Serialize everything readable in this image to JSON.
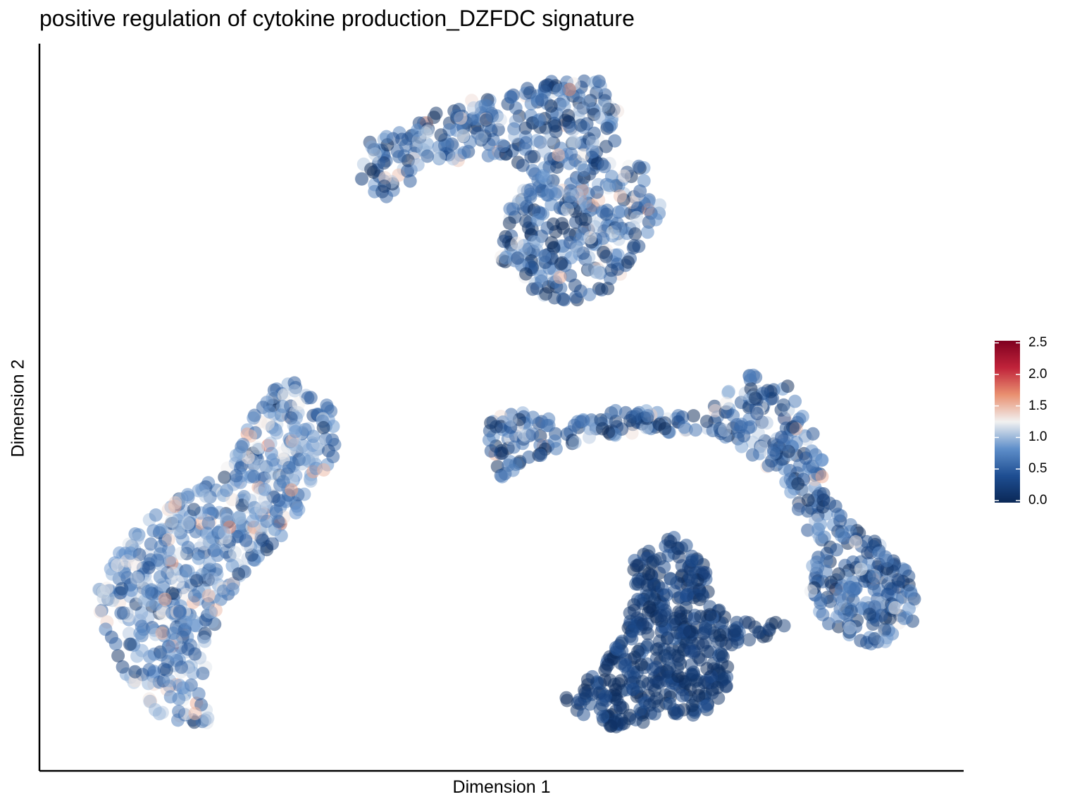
{
  "chart_data": {
    "type": "scatter",
    "title": "positive regulation of cytokine production_DZFDC signature",
    "xlabel": "Dimension 1",
    "ylabel": "Dimension 2",
    "grid": false,
    "legend": {
      "position": "right",
      "type": "colorbar",
      "colormap": [
        "#0a2856",
        "#1e4e92",
        "#5f8fca",
        "#f1f1f1",
        "#e99070",
        "#c0233a",
        "#7f0020"
      ],
      "ticks": [
        "0.0",
        "0.5",
        "1.0",
        "1.5",
        "2.0",
        "2.5"
      ],
      "range": [
        0,
        2.5
      ]
    },
    "point_alpha": 0.5,
    "clusters": [
      {
        "name": "",
        "x": [
          -4.6,
          -3.5
        ],
        "y": [
          -4.2,
          0.8
        ],
        "mean_value": 0.8,
        "value_spread": 0.35
      },
      {
        "name": "",
        "x": [
          -1.2,
          1.8
        ],
        "y": [
          2.1,
          5.9
        ],
        "mean_value": 0.6,
        "value_spread": 0.45
      },
      {
        "name": "",
        "x": [
          0.0,
          4.9
        ],
        "y": [
          -0.8,
          0.7
        ],
        "mean_value": 0.55,
        "value_spread": 0.4
      },
      {
        "name": "",
        "x": [
          1.6,
          4.9
        ],
        "y": [
          -4.0,
          -1.2
        ],
        "mean_value": 0.2,
        "value_spread": 0.15
      }
    ]
  }
}
